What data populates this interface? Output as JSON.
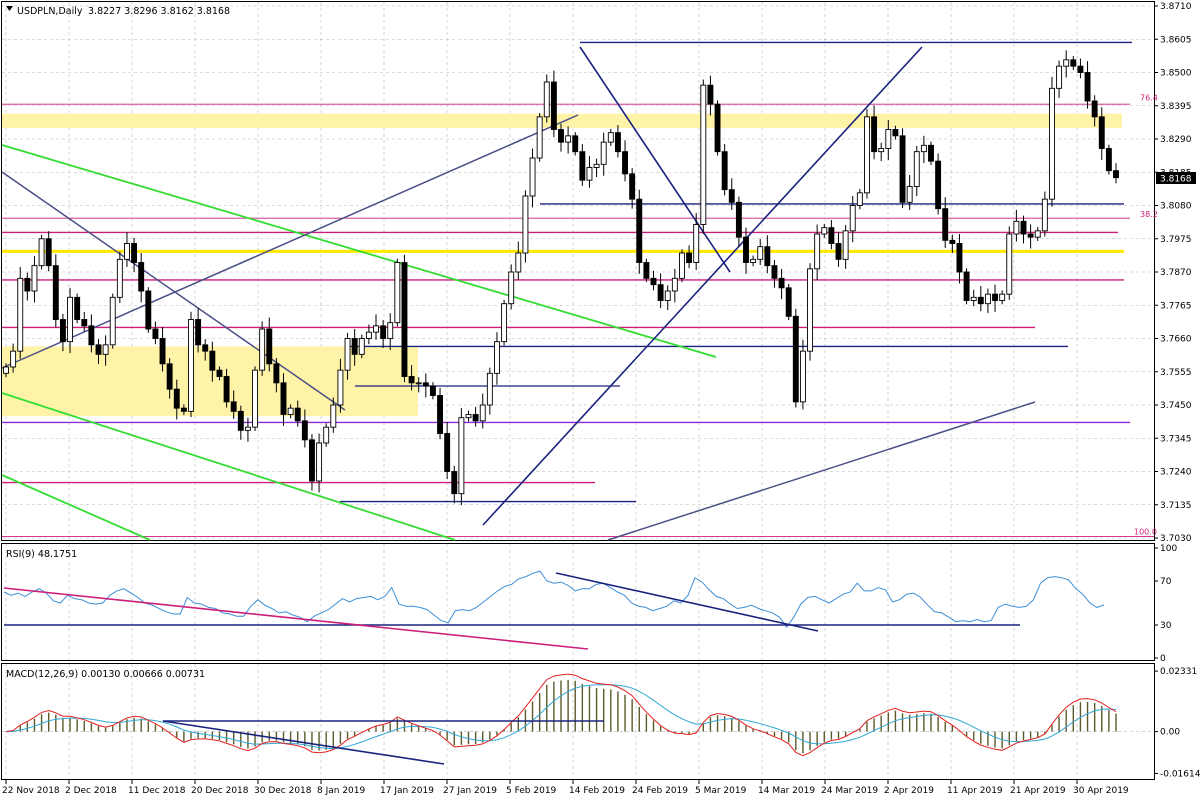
{
  "window": {
    "symbol_header": "USDPLN,Daily",
    "ohlc_values": "3.8227 3.8296 3.8162 3.8168",
    "current_price_tag": "3.8168"
  },
  "colors": {
    "bull_candle": "#ffffff",
    "bear_candle": "#000000",
    "yellow_zone": "#fff3a8",
    "yellow_line": "#ffe800",
    "navy_line": "#1a237e",
    "green_line": "#33dd33",
    "magenta_line": "#cc1f7a",
    "violet_line": "#8e2ad6",
    "slate_line": "#4a4f86",
    "rsi_line": "#3d8fd8",
    "macd_signal": "#e02020",
    "macd_main": "#2ea8d4",
    "macd_hist": "#5c5a2a"
  },
  "chart_data": [
    {
      "type": "candlestick",
      "x_axis": {
        "tick_labels": [
          "22 Nov 2018",
          "2 Dec 2018",
          "11 Dec 2018",
          "20 Dec 2018",
          "30 Dec 2018",
          "8 Jan 2019",
          "17 Jan 2019",
          "27 Jan 2019",
          "5 Feb 2019",
          "14 Feb 2019",
          "24 Feb 2019",
          "5 Mar 2019",
          "14 Mar 2019",
          "24 Mar 2019",
          "2 Apr 2019",
          "11 Apr 2019",
          "21 Apr 2019",
          "30 Apr 2019"
        ]
      },
      "y_axis": {
        "tick_labels": [
          "3.8710",
          "3.8605",
          "3.8500",
          "3.8395",
          "3.8290",
          "3.8185",
          "3.8080",
          "3.7975",
          "3.7870",
          "3.7765",
          "3.7660",
          "3.7555",
          "3.7450",
          "3.7345",
          "3.7240",
          "3.7135",
          "3.7030"
        ],
        "ylim": [
          3.703,
          3.871
        ]
      },
      "close_values": [
        3.757,
        3.762,
        3.785,
        3.781,
        3.789,
        3.7975,
        3.789,
        3.772,
        3.765,
        3.779,
        3.772,
        3.77,
        3.764,
        3.761,
        3.764,
        3.779,
        3.791,
        3.796,
        3.79,
        3.781,
        3.769,
        3.766,
        3.758,
        3.75,
        3.744,
        3.743,
        3.772,
        3.764,
        3.762,
        3.756,
        3.754,
        3.746,
        3.743,
        3.737,
        3.738,
        3.756,
        3.769,
        3.758,
        3.752,
        3.742,
        3.744,
        3.74,
        3.734,
        3.721,
        3.733,
        3.738,
        3.745,
        3.756,
        3.766,
        3.761,
        3.766,
        3.768,
        3.77,
        3.766,
        3.771,
        3.79,
        3.754,
        3.752,
        3.752,
        3.751,
        3.748,
        3.736,
        3.724,
        3.717,
        3.741,
        3.742,
        3.74,
        3.745,
        3.755,
        3.765,
        3.777,
        3.787,
        3.793,
        3.811,
        3.823,
        3.836,
        3.847,
        3.832,
        3.828,
        3.83,
        3.825,
        3.816,
        3.82,
        3.821,
        3.828,
        3.831,
        3.825,
        3.818,
        3.81,
        3.79,
        3.785,
        3.783,
        3.778,
        3.781,
        3.785,
        3.793,
        3.79,
        3.802,
        3.846,
        3.84,
        3.825,
        3.813,
        3.809,
        3.798,
        3.79,
        3.791,
        3.795,
        3.789,
        3.785,
        3.782,
        3.773,
        3.746,
        3.762,
        3.788,
        3.799,
        3.801,
        3.796,
        3.791,
        3.8,
        3.808,
        3.812,
        3.836,
        3.825,
        3.826,
        3.832,
        3.83,
        3.809,
        3.814,
        3.825,
        3.827,
        3.822,
        3.807,
        3.797,
        3.796,
        3.787,
        3.778,
        3.779,
        3.777,
        3.78,
        3.778,
        3.78,
        3.799,
        3.803,
        3.799,
        3.798,
        3.8,
        3.81,
        3.845,
        3.852,
        3.854,
        3.852,
        3.85,
        3.841,
        3.836,
        3.826,
        3.819,
        3.8168
      ],
      "horizontal_levels": [
        3.8595,
        3.84,
        3.8085,
        3.804,
        3.7995,
        3.7935,
        3.7845,
        3.7695,
        3.7635,
        3.751,
        3.7395,
        3.7205,
        3.7145
      ],
      "fib_labels": [
        "76.4",
        "38.2",
        "100.0"
      ],
      "fib_values": [
        3.8405,
        3.8038,
        3.7035
      ],
      "shaded_zones": [
        [
          3.8325,
          3.837
        ],
        [
          3.7415,
          3.7635
        ]
      ]
    },
    {
      "type": "line",
      "title": "RSI(9) 48.1751",
      "y_axis": {
        "tick_labels": [
          "100",
          "70",
          "30",
          "0"
        ],
        "ylim": [
          0,
          100
        ]
      },
      "values": [
        60,
        57,
        59,
        56,
        60,
        63,
        59,
        52,
        50,
        57,
        54,
        53,
        50,
        49,
        50,
        57,
        61,
        63,
        59,
        55,
        50,
        48,
        45,
        42,
        40,
        40,
        55,
        50,
        49,
        46,
        45,
        41,
        40,
        38,
        38,
        47,
        53,
        48,
        45,
        41,
        42,
        39,
        37,
        33,
        38,
        41,
        44,
        49,
        54,
        51,
        54,
        55,
        56,
        53,
        56,
        64,
        49,
        47,
        47,
        46,
        44,
        39,
        34,
        32,
        43,
        44,
        43,
        46,
        51,
        56,
        61,
        65,
        67,
        72,
        74,
        77,
        79,
        70,
        68,
        69,
        66,
        61,
        63,
        63,
        67,
        68,
        64,
        60,
        57,
        50,
        47,
        46,
        43,
        45,
        47,
        52,
        50,
        57,
        73,
        69,
        62,
        56,
        54,
        49,
        45,
        46,
        48,
        45,
        43,
        41,
        37,
        28,
        37,
        49,
        55,
        56,
        53,
        50,
        54,
        58,
        60,
        68,
        61,
        61,
        64,
        62,
        51,
        53,
        58,
        59,
        55,
        48,
        42,
        41,
        37,
        33,
        34,
        33,
        35,
        33,
        34,
        46,
        49,
        47,
        46,
        47,
        53,
        68,
        73,
        74,
        73,
        71,
        63,
        58,
        50,
        46,
        48.1751
      ]
    },
    {
      "type": "line",
      "title": "MACD(12,26,9) 0.00130 0.00666 0.00731",
      "y_axis": {
        "tick_labels": [
          "0.02331",
          "0.00",
          "-0.01614"
        ],
        "ylim": [
          -0.0175,
          0.0245
        ]
      }
    }
  ]
}
